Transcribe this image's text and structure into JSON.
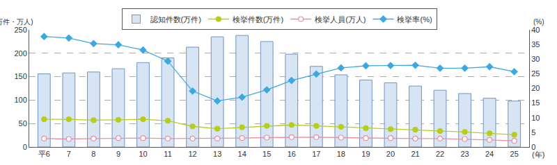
{
  "chart_data": {
    "type": "bar",
    "categories": [
      "平6",
      "7",
      "8",
      "9",
      "10",
      "11",
      "12",
      "13",
      "14",
      "15",
      "16",
      "17",
      "18",
      "19",
      "20",
      "21",
      "22",
      "23",
      "24",
      "25"
    ],
    "x_label": "(年)",
    "y_label": "(万件・万人)",
    "y2_label": "(%)",
    "series": [
      {
        "name": "認知件数(万件)",
        "type": "bar",
        "color": "#d6e4f4",
        "values": [
          156,
          158,
          160,
          167,
          180,
          190,
          213,
          235,
          238,
          225,
          198,
          172,
          154,
          143,
          137,
          130,
          121,
          114,
          104,
          98
        ]
      },
      {
        "name": "検挙件数(万件)",
        "type": "line",
        "color": "#b8cc1a",
        "marker": "circle",
        "line_style": "solid",
        "values": [
          59,
          59,
          57,
          58,
          59,
          56,
          44,
          39,
          42,
          45,
          47,
          45,
          43,
          40,
          38,
          37,
          34,
          32,
          29,
          26
        ]
      },
      {
        "name": "検挙人員(万人)",
        "type": "line",
        "color": "#e8909c",
        "marker": "circle-open",
        "line_style": "solid",
        "values": [
          18,
          17,
          18,
          19,
          19,
          18,
          18,
          18,
          19,
          20,
          21,
          21,
          20,
          19,
          19,
          18,
          18,
          17,
          15,
          13
        ]
      },
      {
        "name": "検挙率(%)",
        "type": "line",
        "axis": "y2",
        "color": "#3da8df",
        "marker": "diamond",
        "line_style": "solid",
        "values": [
          37.7,
          37.2,
          35.3,
          34.9,
          33.1,
          29.3,
          19.1,
          15.7,
          17.0,
          19.5,
          22.7,
          24.9,
          27.0,
          27.7,
          27.8,
          27.9,
          26.9,
          26.9,
          27.4,
          25.7
        ]
      }
    ],
    "ylim": [
      0,
      250
    ],
    "yticks": [
      0,
      50,
      100,
      150,
      200,
      250
    ],
    "y2lim": [
      0,
      40
    ],
    "y2ticks": [
      0,
      5,
      10,
      15,
      20,
      25,
      30,
      35,
      40
    ],
    "grid": true,
    "legend": "top"
  }
}
